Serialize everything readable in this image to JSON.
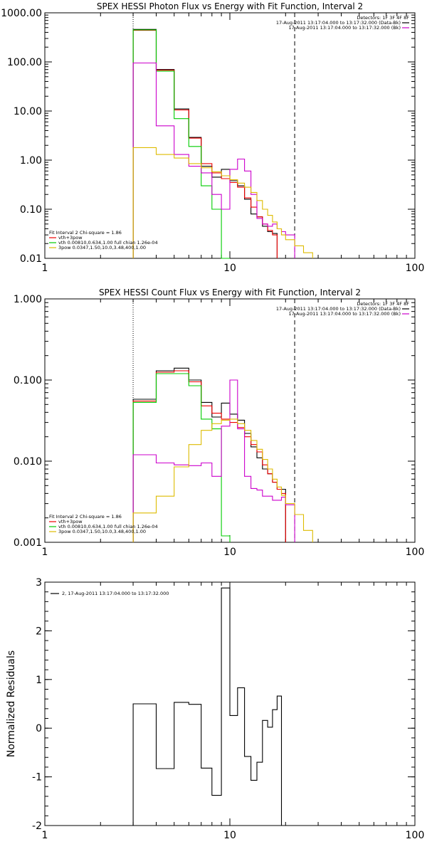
{
  "chart_data": [
    {
      "type": "line",
      "title": "SPEX HESSI Photon Flux vs Energy with Fit Function, Interval 2",
      "xlabel": "",
      "ylabel": "",
      "xscale": "log",
      "yscale": "log",
      "xlim": [
        1,
        100
      ],
      "ylim": [
        0.01,
        1000
      ],
      "x_ticks": [
        "1",
        "10",
        "100"
      ],
      "y_ticks": [
        "0.01",
        "0.10",
        "1.00",
        "10.00",
        "100.00",
        "1000.00"
      ],
      "vlines": [
        {
          "x": 3.0,
          "style": "dotted"
        },
        {
          "x": 22.4,
          "style": "dashed"
        }
      ],
      "legend_top_right": {
        "header": "Detectors: 1F 3F 4F 8F",
        "entries": [
          {
            "label": "17-Aug-2011 13:17:04.000 to 13:17:32.000 (Data-Bk)",
            "color": "#000000"
          },
          {
            "label": "17-Aug-2011 13:17:04.000 to 13:17:32.000 (Bk)",
            "color": "#cc00cc"
          }
        ]
      },
      "legend_bottom_left": {
        "header": "Fit Interval 2   Chi-square = 1.86",
        "entries": [
          {
            "label": "vth+3pow",
            "color": "#ee0000"
          },
          {
            "label": "vth 0.00810,0.634,1.00  full chian 1.26e-04",
            "color": "#00cc00"
          },
          {
            "label": "3pow 0.0347,1.50,10.0,3.48,400,1.00",
            "color": "#ddbb00"
          }
        ]
      },
      "bin_edges": [
        3.0,
        4.0,
        5.0,
        6.0,
        7.0,
        8.0,
        9.0,
        10.0,
        11.0,
        12.0,
        13.0,
        14.0,
        15.0,
        16.0,
        17.0,
        18.0,
        19.0,
        20.0,
        22.4,
        25.0,
        28.0
      ],
      "series": [
        {
          "color": "#000000",
          "values": [
            460,
            70,
            11,
            2.9,
            0.75,
            0.45,
            0.65,
            0.38,
            0.3,
            0.16,
            0.08,
            0.07,
            0.045,
            0.035,
            0.032
          ]
        },
        {
          "color": "#ee0000",
          "values": [
            440,
            68,
            10.5,
            2.8,
            0.85,
            0.55,
            0.42,
            0.35,
            0.28,
            0.17,
            0.11,
            0.07,
            0.05,
            0.037,
            0.03
          ]
        },
        {
          "color": "#00cc00",
          "values": [
            450,
            65,
            7,
            1.9,
            0.3,
            0.1,
            0.0083
          ]
        },
        {
          "color": "#cc00cc",
          "values": [
            95,
            5,
            1.3,
            0.75,
            0.55,
            0.2,
            0.1,
            0.65,
            1.05,
            0.6,
            0.2,
            0.065,
            0.05,
            0.045,
            0.05,
            0.04,
            0.035,
            0.03
          ]
        },
        {
          "color": "#ddbb00",
          "values": [
            1.8,
            1.3,
            1.1,
            0.85,
            0.7,
            0.58,
            0.48,
            0.4,
            0.34,
            0.28,
            0.22,
            0.15,
            0.1,
            0.075,
            0.055,
            0.04,
            0.03,
            0.024,
            0.018,
            0.013
          ]
        }
      ]
    },
    {
      "type": "line",
      "title": "SPEX HESSI Count Flux vs Energy with Fit Function, Interval 2",
      "xlabel": "",
      "ylabel": "",
      "xscale": "log",
      "yscale": "log",
      "xlim": [
        1,
        100
      ],
      "ylim": [
        0.001,
        1.0
      ],
      "x_ticks": [
        "1",
        "10",
        "100"
      ],
      "y_ticks": [
        "0.001",
        "0.010",
        "0.100",
        "1.000"
      ],
      "vlines": [
        {
          "x": 3.0,
          "style": "dotted"
        },
        {
          "x": 22.4,
          "style": "dashed"
        }
      ],
      "legend_top_right": {
        "header": "Detectors: 1F 3F 4F 8F",
        "entries": [
          {
            "label": "17-Aug-2011 13:17:04.000 to 13:17:32.000 (Data-Bk)",
            "color": "#000000"
          },
          {
            "label": "17-Aug-2011 13:17:04.000 to 13:17:32.000 (Bk)",
            "color": "#cc00cc"
          }
        ]
      },
      "legend_bottom_left": {
        "header": "Fit Interval 2   Chi-square = 1.86",
        "entries": [
          {
            "label": "vth+3pow",
            "color": "#ee0000"
          },
          {
            "label": "vth 0.00810,0.634,1.00  full chian 1.26e-04",
            "color": "#00cc00"
          },
          {
            "label": "3pow 0.0347,1.50,10.0,3.48,400,1.00",
            "color": "#ddbb00"
          }
        ]
      },
      "bin_edges": [
        3.0,
        4.0,
        5.0,
        6.0,
        7.0,
        8.0,
        9.0,
        10.0,
        11.0,
        12.0,
        13.0,
        14.0,
        15.0,
        16.0,
        17.0,
        18.0,
        19.0,
        20.0,
        22.4,
        25.0,
        28.0
      ],
      "series": [
        {
          "color": "#000000",
          "values": [
            0.058,
            0.13,
            0.14,
            0.1,
            0.053,
            0.035,
            0.052,
            0.038,
            0.032,
            0.022,
            0.015,
            0.011,
            0.008,
            0.007,
            0.0055,
            0.0045,
            0.0045
          ]
        },
        {
          "color": "#ee0000",
          "values": [
            0.055,
            0.125,
            0.13,
            0.095,
            0.048,
            0.039,
            0.033,
            0.03,
            0.026,
            0.02,
            0.016,
            0.013,
            0.009,
            0.007,
            0.0055,
            0.0045,
            0.004
          ]
        },
        {
          "color": "#00cc00",
          "values": [
            0.053,
            0.12,
            0.12,
            0.085,
            0.033,
            0.025,
            0.0012
          ]
        },
        {
          "color": "#cc00cc",
          "values": [
            0.012,
            0.0095,
            0.009,
            0.0088,
            0.0095,
            0.0065,
            0.027,
            0.1,
            0.025,
            0.0065,
            0.0046,
            0.0044,
            0.0037,
            0.0037,
            0.0033,
            0.0033,
            0.0036,
            0.0029
          ]
        },
        {
          "color": "#ddbb00",
          "values": [
            0.0023,
            0.0037,
            0.0085,
            0.016,
            0.024,
            0.029,
            0.032,
            0.033,
            0.029,
            0.024,
            0.018,
            0.014,
            0.0105,
            0.008,
            0.006,
            0.0048,
            0.0038,
            0.003,
            0.0022,
            0.0014
          ]
        }
      ]
    },
    {
      "type": "line",
      "title": "",
      "xlabel": "",
      "ylabel": "Normalized Residuals",
      "xscale": "log",
      "yscale": "linear",
      "xlim": [
        1,
        100
      ],
      "ylim": [
        -2,
        3
      ],
      "x_ticks": [
        "1",
        "10",
        "100"
      ],
      "y_ticks": [
        "-2",
        "-1",
        "0",
        "1",
        "2",
        "3"
      ],
      "legend": [
        {
          "label": "2, 17-Aug-2011 13:17:04.000 to 13:17:32.000",
          "color": "#000000"
        }
      ],
      "bin_edges": [
        3.0,
        4.0,
        5.0,
        6.0,
        7.0,
        8.0,
        9.0,
        10.0,
        11.0,
        12.0,
        13.0,
        14.0,
        15.0,
        16.0,
        17.0,
        18.0,
        19.0,
        20.0,
        22.4
      ],
      "series": [
        {
          "color": "#000000",
          "values": [
            0.5,
            -0.83,
            0.53,
            0.49,
            -0.82,
            -1.38,
            2.88,
            0.26,
            0.83,
            -0.58,
            -1.07,
            -0.7,
            0.16,
            0.02,
            0.38,
            0.66
          ]
        }
      ]
    }
  ]
}
